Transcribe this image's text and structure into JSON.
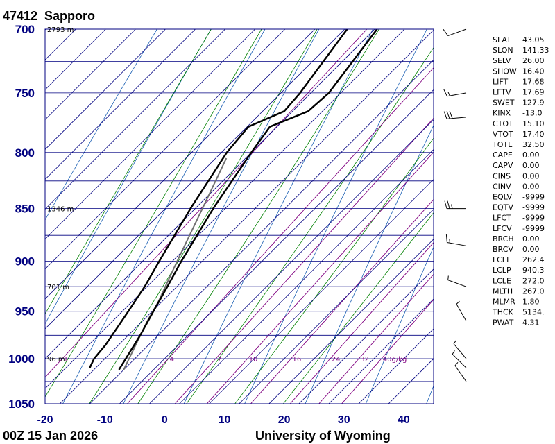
{
  "header": {
    "station_id": "47412",
    "station_name": "Sapporo"
  },
  "footer": {
    "time": "00Z 15 Jan 2026",
    "source": "University of Wyoming"
  },
  "colors": {
    "axis_text": "#000080",
    "isotherm": "#000080",
    "dry_adiabat": "#1a5fb4",
    "moist_adiabat": "#008000",
    "mixing_ratio": "#800080",
    "profile": "#000000",
    "parcel": "#707070"
  },
  "chart_data": {
    "type": "skew-t log-p sounding diagram",
    "pressure_levels": [
      700,
      750,
      800,
      850,
      900,
      950,
      1000,
      1050
    ],
    "temperature_ticks": [
      -20,
      -10,
      0,
      10,
      20,
      30,
      40
    ],
    "xlim": [
      -20,
      45
    ],
    "plim": [
      1050,
      700
    ],
    "height_labels": [
      {
        "p": 700,
        "text": "2793 m"
      },
      {
        "p": 850,
        "text": "1346 m"
      },
      {
        "p": 925,
        "text": "701 m"
      },
      {
        "p": 1000,
        "text": "96 m"
      }
    ],
    "mixing_ratio_labels": [
      "1",
      "4",
      "7",
      "10",
      "16",
      "24",
      "32",
      "40g/kg"
    ],
    "mixing_ratio_values": [
      1,
      4,
      7,
      10,
      16,
      24,
      32,
      40
    ],
    "temperature_profile": [
      {
        "p": 1012,
        "t": -5.8
      },
      {
        "p": 1000,
        "t": -6.5
      },
      {
        "p": 975,
        "t": -8.0
      },
      {
        "p": 950,
        "t": -9.8
      },
      {
        "p": 925,
        "t": -11.6
      },
      {
        "p": 900,
        "t": -13.5
      },
      {
        "p": 850,
        "t": -17.0
      },
      {
        "p": 800,
        "t": -20.0
      },
      {
        "p": 778,
        "t": -21.2
      },
      {
        "p": 765,
        "t": -17.4
      },
      {
        "p": 750,
        "t": -17.0
      },
      {
        "p": 700,
        "t": -19.6
      }
    ],
    "dewpoint_profile": [
      {
        "p": 1010,
        "t": -11.0
      },
      {
        "p": 1000,
        "t": -11.8
      },
      {
        "p": 985,
        "t": -12.2
      },
      {
        "p": 950,
        "t": -14.0
      },
      {
        "p": 925,
        "t": -15.4
      },
      {
        "p": 900,
        "t": -17.2
      },
      {
        "p": 850,
        "t": -20.8
      },
      {
        "p": 800,
        "t": -24.1
      },
      {
        "p": 778,
        "t": -24.8
      },
      {
        "p": 765,
        "t": -21.4
      },
      {
        "p": 750,
        "t": -21.8
      },
      {
        "p": 700,
        "t": -24.6
      }
    ],
    "parcel_profile": [
      {
        "p": 1012,
        "t": -5.0
      },
      {
        "p": 960,
        "t": -9.2
      },
      {
        "p": 940,
        "t": -10.6
      },
      {
        "p": 900,
        "t": -14.2
      },
      {
        "p": 850,
        "t": -18.8
      },
      {
        "p": 805,
        "t": -23.2
      }
    ],
    "winds": [
      {
        "p": 700,
        "dir": 250,
        "kt": 10
      },
      {
        "p": 750,
        "dir": 260,
        "kt": 15
      },
      {
        "p": 770,
        "dir": 265,
        "kt": 30
      },
      {
        "p": 850,
        "dir": 270,
        "kt": 25
      },
      {
        "p": 885,
        "dir": 280,
        "kt": 15
      },
      {
        "p": 925,
        "dir": 290,
        "kt": 5
      },
      {
        "p": 960,
        "dir": 330,
        "kt": 5
      },
      {
        "p": 1000,
        "dir": 320,
        "kt": 5
      },
      {
        "p": 1010,
        "dir": 315,
        "kt": 5
      },
      {
        "p": 1025,
        "dir": 325,
        "kt": 5
      }
    ]
  },
  "indices": [
    {
      "name": "SLAT",
      "value": "43.05"
    },
    {
      "name": "SLON",
      "value": "141.33"
    },
    {
      "name": "SELV",
      "value": "26.00"
    },
    {
      "name": "SHOW",
      "value": "16.40"
    },
    {
      "name": "LIFT",
      "value": "17.68"
    },
    {
      "name": "LFTV",
      "value": "17.69"
    },
    {
      "name": "SWET",
      "value": "127.9"
    },
    {
      "name": "KINX",
      "value": "-13.0"
    },
    {
      "name": "CTOT",
      "value": "15.10"
    },
    {
      "name": "VTOT",
      "value": "17.40"
    },
    {
      "name": "TOTL",
      "value": "32.50"
    },
    {
      "name": "CAPE",
      "value": "0.00"
    },
    {
      "name": "CAPV",
      "value": "0.00"
    },
    {
      "name": "CINS",
      "value": "0.00"
    },
    {
      "name": "CINV",
      "value": "0.00"
    },
    {
      "name": "EQLV",
      "value": "-9999"
    },
    {
      "name": "EQTV",
      "value": "-9999"
    },
    {
      "name": "LFCT",
      "value": "-9999"
    },
    {
      "name": "LFCV",
      "value": "-9999"
    },
    {
      "name": "BRCH",
      "value": "0.00"
    },
    {
      "name": "BRCV",
      "value": "0.00"
    },
    {
      "name": "LCLT",
      "value": "262.4"
    },
    {
      "name": "LCLP",
      "value": "940.3"
    },
    {
      "name": "LCLE",
      "value": "272.0"
    },
    {
      "name": "MLTH",
      "value": "267.0"
    },
    {
      "name": "MLMR",
      "value": "1.80"
    },
    {
      "name": "THCK",
      "value": "5134."
    },
    {
      "name": "PWAT",
      "value": "4.31"
    }
  ]
}
